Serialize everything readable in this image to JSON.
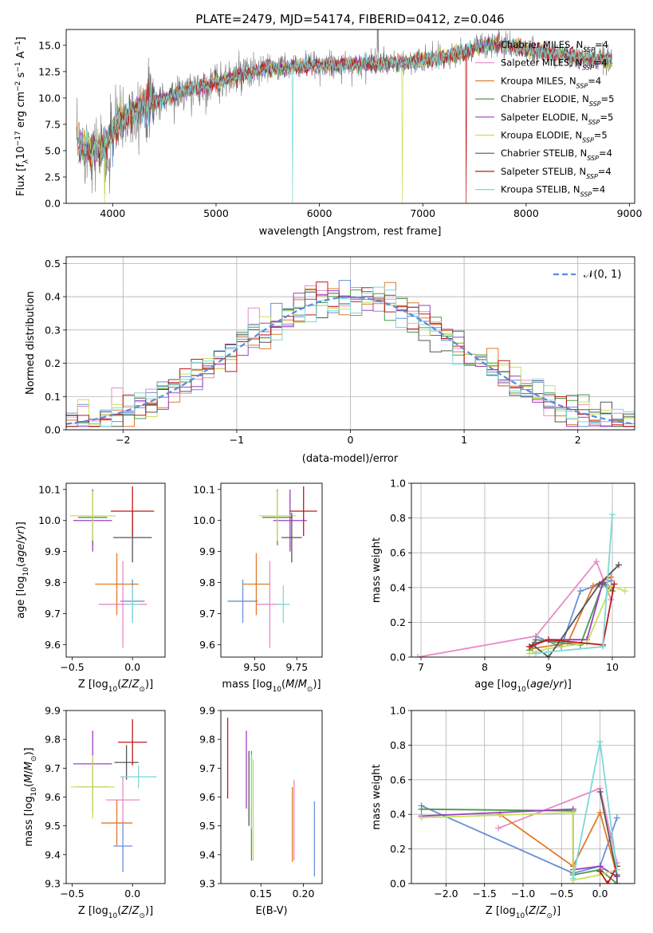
{
  "title": "PLATE=2479, MJD=54174, FIBERID=0412, z=0.046",
  "series_styles": [
    {
      "name": "Chabrier MILES, N_SSP=4",
      "color": "#6a8fd8"
    },
    {
      "name": "Salpeter MILES, N_SSP=4",
      "color": "#e88ac6"
    },
    {
      "name": "Kroupa MILES, N_SSP=4",
      "color": "#e07a2a"
    },
    {
      "name": "Chabrier ELODIE, N_SSP=5",
      "color": "#4a9a4a"
    },
    {
      "name": "Salpeter ELODIE, N_SSP=5",
      "color": "#9b3fc0"
    },
    {
      "name": "Kroupa ELODIE, N_SSP=5",
      "color": "#c8e05a"
    },
    {
      "name": "Chabrier STELIB, N_SSP=4",
      "color": "#555555"
    },
    {
      "name": "Salpeter STELIB, N_SSP=4",
      "color": "#c01818"
    },
    {
      "name": "Kroupa STELIB, N_SSP=4",
      "color": "#7dd8d8"
    }
  ],
  "chart_data": [
    {
      "id": "spectrum",
      "type": "line",
      "title": "PLATE=2479, MJD=54174, FIBERID=0412, z=0.046",
      "xlabel": "wavelength [Angstrom, rest frame]",
      "ylabel": "Flux [f_λ 10^-17 erg cm^-2 s^-1 A^-1]",
      "xlim": [
        3550,
        9050
      ],
      "ylim": [
        0,
        16.5
      ],
      "xticks": [
        4000,
        5000,
        6000,
        7000,
        8000,
        9000
      ],
      "yticks": [
        0.0,
        2.5,
        5.0,
        7.5,
        10.0,
        12.5,
        15.0
      ],
      "legend": {
        "position": "top-right",
        "entries": [
          {
            "prefix": "Chabrier MILES, N",
            "sub": "SSP",
            "suffix": "=4"
          },
          {
            "prefix": "Salpeter MILES, N",
            "sub": "SSP",
            "suffix": "=4"
          },
          {
            "prefix": "Kroupa MILES, N",
            "sub": "SSP",
            "suffix": "=4"
          },
          {
            "prefix": "Chabrier ELODIE, N",
            "sub": "SSP",
            "suffix": "=5"
          },
          {
            "prefix": "Salpeter ELODIE, N",
            "sub": "SSP",
            "suffix": "=5"
          },
          {
            "prefix": "Kroupa ELODIE, N",
            "sub": "SSP",
            "suffix": "=5"
          },
          {
            "prefix": "Chabrier STELIB, N",
            "sub": "SSP",
            "suffix": "=4"
          },
          {
            "prefix": "Salpeter STELIB, N",
            "sub": "SSP",
            "suffix": "=4"
          },
          {
            "prefix": "Kroupa STELIB, N",
            "sub": "SSP",
            "suffix": "=4"
          }
        ]
      },
      "data_range": [
        3650,
        8830
      ],
      "continuum": [
        [
          3650,
          5.5
        ],
        [
          3900,
          5.0
        ],
        [
          4000,
          7.0
        ],
        [
          4200,
          8.8
        ],
        [
          4500,
          10.0
        ],
        [
          5000,
          11.5
        ],
        [
          5500,
          12.8
        ],
        [
          6000,
          13.1
        ],
        [
          6500,
          13.2
        ],
        [
          7000,
          13.5
        ],
        [
          7400,
          14.3
        ],
        [
          7500,
          14.8
        ],
        [
          7700,
          15.2
        ],
        [
          8000,
          14.6
        ],
        [
          8400,
          14.0
        ],
        [
          8830,
          13.5
        ]
      ],
      "model_dropouts": [
        {
          "x": 3920,
          "series": "Kroupa ELODIE, N_SSP=5"
        },
        {
          "x": 5740,
          "series": "Kroupa STELIB, N_SSP=4"
        },
        {
          "x": 6800,
          "series": "Kroupa ELODIE, N_SSP=5"
        },
        {
          "x": 7420,
          "series": "Salpeter STELIB, N_SSP=4"
        }
      ]
    },
    {
      "id": "residuals",
      "type": "histogram",
      "xlabel": "(data-model)/error",
      "ylabel": "Normed distribution",
      "xlim": [
        -2.5,
        2.5
      ],
      "ylim": [
        0,
        0.52
      ],
      "xticks": [
        -2,
        -1,
        0,
        1,
        2
      ],
      "yticks": [
        0.0,
        0.1,
        0.2,
        0.3,
        0.4,
        0.5
      ],
      "grid": true,
      "bin_width": 0.1,
      "reference_curve": "N(0,1)",
      "legend": {
        "position": "top-right",
        "entries": [
          "𝒩(0, 1)"
        ]
      }
    },
    {
      "id": "age-vs-Z",
      "type": "errorbar",
      "xlabel": "Z [log10(Z/Z⊙)]",
      "ylabel": "age  [log10(age/yr)]",
      "xlim": [
        -0.55,
        0.27
      ],
      "ylim": [
        9.56,
        10.12
      ],
      "xticks": [
        -0.5,
        0.0
      ],
      "yticks": [
        9.6,
        9.7,
        9.8,
        9.9,
        10.0,
        10.1
      ],
      "points": [
        {
          "series": "Chabrier MILES, N_SSP=4",
          "x": 0.0,
          "xerr": 0.1,
          "y": 9.74,
          "yerr": 0.07
        },
        {
          "series": "Salpeter MILES, N_SSP=4",
          "x": -0.08,
          "xerr": 0.2,
          "y": 9.73,
          "yerr": 0.14
        },
        {
          "series": "Kroupa MILES, N_SSP=4",
          "x": -0.13,
          "xerr": 0.18,
          "y": 9.795,
          "yerr": 0.1
        },
        {
          "series": "Chabrier ELODIE, N_SSP=5",
          "x": -0.33,
          "xerr": 0.12,
          "y": 10.01,
          "yerr": 0.09
        },
        {
          "series": "Salpeter ELODIE, N_SSP=5",
          "x": -0.33,
          "xerr": 0.16,
          "y": 10.0,
          "yerr": 0.1
        },
        {
          "series": "Kroupa ELODIE, N_SSP=5",
          "x": -0.33,
          "xerr": 0.19,
          "y": 10.015,
          "yerr": 0.08
        },
        {
          "series": "Chabrier STELIB, N_SSP=4",
          "x": 0.0,
          "xerr": 0.16,
          "y": 9.945,
          "yerr": 0.08
        },
        {
          "series": "Salpeter STELIB, N_SSP=4",
          "x": 0.0,
          "xerr": 0.18,
          "y": 10.03,
          "yerr": 0.08
        },
        {
          "series": "Kroupa STELIB, N_SSP=4",
          "x": 0.0,
          "xerr": 0.06,
          "y": 9.73,
          "yerr": 0.06
        }
      ]
    },
    {
      "id": "age-vs-mass",
      "type": "errorbar",
      "xlabel": "mass [log10(M/M⊙)]",
      "ylabel": "",
      "xlim": [
        9.3,
        9.9
      ],
      "ylim": [
        9.56,
        10.12
      ],
      "xticks": [
        9.5,
        9.75
      ],
      "yticks": [
        9.6,
        9.7,
        9.8,
        9.9,
        10.0,
        10.1
      ],
      "points": [
        {
          "series": "Chabrier MILES, N_SSP=4",
          "x": 9.43,
          "xerr": 0.09,
          "y": 9.74,
          "yerr": 0.07
        },
        {
          "series": "Salpeter MILES, N_SSP=4",
          "x": 9.59,
          "xerr": 0.08,
          "y": 9.73,
          "yerr": 0.14
        },
        {
          "series": "Kroupa MILES, N_SSP=4",
          "x": 9.51,
          "xerr": 0.08,
          "y": 9.795,
          "yerr": 0.1
        },
        {
          "series": "Chabrier ELODIE, N_SSP=5",
          "x": 9.635,
          "xerr": 0.09,
          "y": 10.01,
          "yerr": 0.09
        },
        {
          "series": "Salpeter ELODIE, N_SSP=5",
          "x": 9.71,
          "xerr": 0.1,
          "y": 10.0,
          "yerr": 0.1
        },
        {
          "series": "Kroupa ELODIE, N_SSP=5",
          "x": 9.635,
          "xerr": 0.11,
          "y": 10.015,
          "yerr": 0.08
        },
        {
          "series": "Chabrier STELIB, N_SSP=4",
          "x": 9.72,
          "xerr": 0.06,
          "y": 9.945,
          "yerr": 0.08
        },
        {
          "series": "Salpeter STELIB, N_SSP=4",
          "x": 9.79,
          "xerr": 0.08,
          "y": 10.03,
          "yerr": 0.08
        },
        {
          "series": "Kroupa STELIB, N_SSP=4",
          "x": 9.67,
          "xerr": 0.04,
          "y": 9.73,
          "yerr": 0.06
        }
      ]
    },
    {
      "id": "massweight-vs-age",
      "type": "line",
      "xlabel": "age  [log10(age/yr)]",
      "ylabel": "mass weight",
      "xlim": [
        6.85,
        10.35
      ],
      "ylim": [
        0,
        1.0
      ],
      "xticks": [
        7,
        8,
        9,
        10
      ],
      "yticks": [
        0.0,
        0.2,
        0.4,
        0.6,
        0.8,
        1.0
      ],
      "grid": true,
      "series": [
        {
          "name": "Chabrier MILES, N_SSP=4",
          "points": [
            [
              8.8,
              0.12
            ],
            [
              9.2,
              0.06
            ],
            [
              9.5,
              0.38
            ],
            [
              9.98,
              0.44
            ]
          ]
        },
        {
          "name": "Salpeter MILES, N_SSP=4",
          "points": [
            [
              6.95,
              0.0
            ],
            [
              8.8,
              0.12
            ],
            [
              9.75,
              0.55
            ],
            [
              9.98,
              0.33
            ]
          ]
        },
        {
          "name": "Kroupa MILES, N_SSP=4",
          "points": [
            [
              8.75,
              0.05
            ],
            [
              9.3,
              0.08
            ],
            [
              9.7,
              0.41
            ],
            [
              9.98,
              0.46
            ]
          ]
        },
        {
          "name": "Chabrier ELODIE, N_SSP=5",
          "points": [
            [
              8.7,
              0.04
            ],
            [
              8.8,
              0.1
            ],
            [
              9.5,
              0.07
            ],
            [
              9.85,
              0.42
            ],
            [
              10.0,
              0.38
            ]
          ]
        },
        {
          "name": "Salpeter ELODIE, N_SSP=5",
          "points": [
            [
              8.8,
              0.08
            ],
            [
              9.0,
              0.1
            ],
            [
              9.6,
              0.1
            ],
            [
              9.85,
              0.43
            ],
            [
              10.0,
              0.4
            ]
          ]
        },
        {
          "name": "Kroupa ELODIE, N_SSP=5",
          "points": [
            [
              8.7,
              0.02
            ],
            [
              9.0,
              0.05
            ],
            [
              9.6,
              0.08
            ],
            [
              9.98,
              0.41
            ],
            [
              10.2,
              0.38
            ]
          ]
        },
        {
          "name": "Chabrier STELIB, N_SSP=4",
          "points": [
            [
              8.75,
              0.07
            ],
            [
              9.0,
              0.0
            ],
            [
              9.8,
              0.42
            ],
            [
              10.1,
              0.53
            ]
          ]
        },
        {
          "name": "Salpeter STELIB, N_SSP=4",
          "points": [
            [
              8.7,
              0.06
            ],
            [
              9.0,
              0.1
            ],
            [
              9.85,
              0.07
            ],
            [
              10.03,
              0.42
            ]
          ]
        },
        {
          "name": "Kroupa STELIB, N_SSP=4",
          "points": [
            [
              8.8,
              0.02
            ],
            [
              9.0,
              0.03
            ],
            [
              9.85,
              0.06
            ],
            [
              10.0,
              0.82
            ]
          ]
        }
      ]
    },
    {
      "id": "mass-vs-Z",
      "type": "errorbar",
      "xlabel": "Z [log10(Z/Z⊙)]",
      "ylabel": "mass [log10(M/M⊙)]",
      "xlim": [
        -0.55,
        0.27
      ],
      "ylim": [
        9.3,
        9.9
      ],
      "xticks": [
        -0.5,
        0.0
      ],
      "yticks": [
        9.3,
        9.4,
        9.5,
        9.6,
        9.7,
        9.8,
        9.9
      ],
      "points": [
        {
          "series": "Chabrier MILES, N_SSP=4",
          "x": -0.08,
          "xerr": 0.08,
          "y": 9.43,
          "yerr": 0.09
        },
        {
          "series": "Salpeter MILES, N_SSP=4",
          "x": -0.08,
          "xerr": 0.14,
          "y": 9.59,
          "yerr": 0.08
        },
        {
          "series": "Kroupa MILES, N_SSP=4",
          "x": -0.13,
          "xerr": 0.13,
          "y": 9.51,
          "yerr": 0.08
        },
        {
          "series": "Chabrier ELODIE, N_SSP=5",
          "x": -0.33,
          "xerr": 0.13,
          "y": 9.635,
          "yerr": 0.09
        },
        {
          "series": "Salpeter ELODIE, N_SSP=5",
          "x": -0.33,
          "xerr": 0.16,
          "y": 9.715,
          "yerr": 0.115
        },
        {
          "series": "Kroupa ELODIE, N_SSP=5",
          "x": -0.33,
          "xerr": 0.18,
          "y": 9.635,
          "yerr": 0.11
        },
        {
          "series": "Chabrier STELIB, N_SSP=4",
          "x": -0.05,
          "xerr": 0.1,
          "y": 9.72,
          "yerr": 0.06
        },
        {
          "series": "Salpeter STELIB, N_SSP=4",
          "x": 0.0,
          "xerr": 0.12,
          "y": 9.79,
          "yerr": 0.08
        },
        {
          "series": "Kroupa STELIB, N_SSP=4",
          "x": 0.05,
          "xerr": 0.15,
          "y": 9.67,
          "yerr": 0.04
        }
      ]
    },
    {
      "id": "mass-vs-EBV",
      "type": "errorbar",
      "xlabel": "E(B-V)",
      "ylabel": "",
      "xlim": [
        0.103,
        0.222
      ],
      "ylim": [
        9.3,
        9.9
      ],
      "xticks": [
        0.15,
        0.2
      ],
      "yticks": [
        9.3,
        9.4,
        9.5,
        9.6,
        9.7,
        9.8,
        9.9
      ],
      "points": [
        {
          "series": "Chabrier MILES, N_SSP=4",
          "x": 0.213,
          "xerr": 0.0,
          "y": 9.455,
          "yerr": 0.13
        },
        {
          "series": "Salpeter MILES, N_SSP=4",
          "x": 0.189,
          "xerr": 0.0,
          "y": 9.52,
          "yerr": 0.14
        },
        {
          "series": "Kroupa MILES, N_SSP=4",
          "x": 0.187,
          "xerr": 0.0,
          "y": 9.505,
          "yerr": 0.13
        },
        {
          "series": "Chabrier ELODIE, N_SSP=5",
          "x": 0.139,
          "xerr": 0.0,
          "y": 9.57,
          "yerr": 0.19
        },
        {
          "series": "Salpeter ELODIE, N_SSP=5",
          "x": 0.133,
          "xerr": 0.0,
          "y": 9.695,
          "yerr": 0.135
        },
        {
          "series": "Kroupa ELODIE, N_SSP=5",
          "x": 0.141,
          "xerr": 0.0,
          "y": 9.555,
          "yerr": 0.175
        },
        {
          "series": "Chabrier STELIB, N_SSP=4",
          "x": 0.136,
          "xerr": 0.0,
          "y": 9.63,
          "yerr": 0.13
        },
        {
          "series": "Salpeter STELIB, N_SSP=4",
          "x": 0.111,
          "xerr": 0.0,
          "y": 9.735,
          "yerr": 0.14
        },
        {
          "series": "Kroupa STELIB, N_SSP=4",
          "x": 0.139,
          "xerr": 0.0,
          "y": 9.62,
          "yerr": 0.13
        }
      ]
    },
    {
      "id": "massweight-vs-Z",
      "type": "line",
      "xlabel": "Z [log10(Z/Z⊙)]",
      "ylabel": "mass weight",
      "xlim": [
        -2.45,
        0.45
      ],
      "ylim": [
        0,
        1.0
      ],
      "xticks": [
        -2.0,
        -1.5,
        -1.0,
        -0.5,
        0.0
      ],
      "yticks": [
        0.0,
        0.2,
        0.4,
        0.6,
        0.8,
        1.0
      ],
      "grid": true,
      "series": [
        {
          "name": "Chabrier MILES, N_SSP=4",
          "points": [
            [
              -2.32,
              0.45
            ],
            [
              -0.35,
              0.06
            ],
            [
              0.0,
              0.1
            ],
            [
              0.22,
              0.38
            ]
          ]
        },
        {
          "name": "Salpeter MILES, N_SSP=4",
          "points": [
            [
              -1.32,
              0.32
            ],
            [
              0.0,
              0.55
            ],
            [
              0.22,
              0.12
            ]
          ]
        },
        {
          "name": "Kroupa MILES, N_SSP=4",
          "points": [
            [
              -1.3,
              0.4
            ],
            [
              -0.35,
              0.1
            ],
            [
              0.0,
              0.41
            ],
            [
              0.22,
              0.05
            ]
          ]
        },
        {
          "name": "Chabrier ELODIE, N_SSP=5",
          "points": [
            [
              -2.32,
              0.43
            ],
            [
              -0.35,
              0.42
            ],
            [
              -0.35,
              0.05
            ],
            [
              0.0,
              0.08
            ],
            [
              0.22,
              0.0
            ]
          ]
        },
        {
          "name": "Salpeter ELODIE, N_SSP=5",
          "points": [
            [
              -2.32,
              0.39
            ],
            [
              -0.35,
              0.43
            ],
            [
              -0.35,
              0.08
            ],
            [
              0.0,
              0.1
            ],
            [
              0.22,
              0.04
            ]
          ]
        },
        {
          "name": "Kroupa ELODIE, N_SSP=5",
          "points": [
            [
              -2.32,
              0.38
            ],
            [
              -0.35,
              0.41
            ],
            [
              -0.35,
              0.02
            ],
            [
              0.0,
              0.05
            ],
            [
              0.22,
              0.08
            ]
          ]
        },
        {
          "name": "Chabrier STELIB, N_SSP=4",
          "points": [
            [
              0.0,
              0.53
            ],
            [
              0.22,
              0.05
            ],
            [
              0.22,
              0.0
            ]
          ]
        },
        {
          "name": "Salpeter STELIB, N_SSP=4",
          "points": [
            [
              0.0,
              0.07
            ],
            [
              0.1,
              0.0
            ],
            [
              0.22,
              0.1
            ]
          ]
        },
        {
          "name": "Kroupa STELIB, N_SSP=4",
          "points": [
            [
              -0.35,
              0.03
            ],
            [
              0.0,
              0.82
            ],
            [
              0.22,
              0.08
            ]
          ]
        }
      ]
    }
  ]
}
